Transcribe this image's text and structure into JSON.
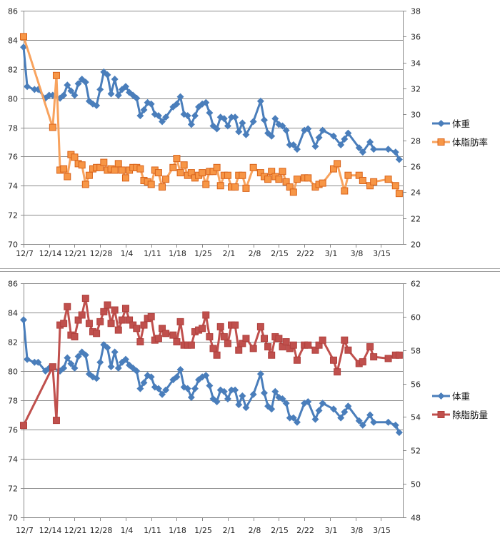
{
  "chart_data": [
    {
      "type": "line",
      "title": "",
      "xlabel": "",
      "ylabel": "",
      "y2label": "",
      "x_unit": "days since 12/7",
      "xlim": [
        0,
        104
      ],
      "xticks": [
        0,
        7,
        14,
        21,
        28,
        35,
        42,
        49,
        56,
        63,
        70,
        77,
        84,
        91,
        98
      ],
      "xtick_labels": [
        "12/7",
        "12/14",
        "12/21",
        "12/28",
        "1/4",
        "1/11",
        "1/18",
        "1/25",
        "2/1",
        "2/8",
        "2/15",
        "2/22",
        "3/1",
        "3/8",
        "3/15"
      ],
      "ylim": [
        70,
        86
      ],
      "yticks": [
        70,
        72,
        74,
        76,
        78,
        80,
        82,
        84,
        86
      ],
      "y2lim": [
        20,
        38
      ],
      "y2ticks": [
        20,
        22,
        24,
        26,
        28,
        30,
        32,
        34,
        36,
        38
      ],
      "grid": true,
      "legend_position": "right",
      "series": [
        {
          "name": "体重",
          "axis": "left",
          "color": "#4A7EBB",
          "marker": "diamond",
          "x": [
            0,
            1,
            3,
            4,
            6,
            7,
            8,
            10,
            11,
            12,
            13,
            14,
            15,
            16,
            17,
            18,
            19,
            20,
            21,
            22,
            23,
            24,
            25,
            26,
            27,
            28,
            29,
            30,
            31,
            32,
            33,
            34,
            35,
            36,
            37,
            38,
            39,
            41,
            42,
            43,
            44,
            45,
            46,
            47,
            48,
            49,
            50,
            51,
            52,
            53,
            54,
            55,
            56,
            57,
            58,
            59,
            60,
            61,
            63,
            65,
            66,
            67,
            68,
            69,
            70,
            71,
            72,
            73,
            74,
            75,
            77,
            78,
            80,
            81,
            82,
            85,
            87,
            88,
            89,
            92,
            93,
            95,
            96,
            100,
            102,
            103
          ],
          "y": [
            83.5,
            80.8,
            80.6,
            80.6,
            80.0,
            80.2,
            80.2,
            80.0,
            80.2,
            80.9,
            80.5,
            80.2,
            81.0,
            81.3,
            81.1,
            79.8,
            79.6,
            79.5,
            80.6,
            81.8,
            81.6,
            80.3,
            81.3,
            80.2,
            80.6,
            80.8,
            80.4,
            80.2,
            80.0,
            78.8,
            79.2,
            79.7,
            79.6,
            78.9,
            78.8,
            78.4,
            78.7,
            79.4,
            79.6,
            80.1,
            78.9,
            78.8,
            78.2,
            78.8,
            79.4,
            79.6,
            79.7,
            79.0,
            78.1,
            77.9,
            78.7,
            78.6,
            78.1,
            78.7,
            78.7,
            77.7,
            78.3,
            77.5,
            78.4,
            79.8,
            78.5,
            77.6,
            77.4,
            78.6,
            78.2,
            78.1,
            77.8,
            76.8,
            76.8,
            76.5,
            77.8,
            77.9,
            76.7,
            77.3,
            77.8,
            77.4,
            76.8,
            77.2,
            77.6,
            76.6,
            76.3,
            77.0,
            76.5,
            76.5,
            76.3,
            75.8
          ]
        },
        {
          "name": "体脂肪率",
          "axis": "right",
          "color": "#F79646",
          "marker": "square",
          "x": [
            0,
            8,
            9,
            10,
            11,
            12,
            13,
            14,
            15,
            16,
            17,
            18,
            19,
            20,
            21,
            22,
            23,
            24,
            25,
            26,
            27,
            28,
            29,
            30,
            31,
            32,
            33,
            34,
            35,
            36,
            37,
            38,
            39,
            41,
            42,
            43,
            44,
            45,
            46,
            47,
            48,
            49,
            50,
            51,
            52,
            53,
            54,
            55,
            56,
            57,
            58,
            59,
            60,
            61,
            63,
            65,
            66,
            67,
            68,
            69,
            70,
            71,
            72,
            73,
            74,
            75,
            77,
            78,
            80,
            81,
            82,
            85,
            86,
            88,
            89,
            92,
            93,
            95,
            96,
            100,
            102,
            103
          ],
          "y": [
            36.0,
            29.0,
            33.0,
            25.7,
            25.8,
            25.2,
            26.9,
            26.7,
            26.2,
            26.1,
            24.6,
            25.3,
            25.8,
            25.9,
            25.9,
            26.3,
            25.7,
            25.8,
            25.7,
            26.2,
            25.7,
            25.1,
            25.7,
            25.9,
            25.9,
            25.8,
            24.9,
            24.8,
            24.6,
            25.7,
            25.5,
            24.4,
            25.0,
            25.9,
            26.6,
            25.5,
            26.1,
            25.3,
            25.5,
            25.1,
            25.3,
            25.5,
            24.6,
            25.6,
            25.6,
            25.9,
            24.5,
            25.3,
            25.3,
            24.4,
            24.4,
            25.3,
            25.3,
            24.3,
            25.9,
            25.5,
            25.2,
            25.0,
            25.6,
            25.2,
            25.0,
            25.6,
            24.8,
            24.4,
            24.0,
            25.0,
            25.1,
            25.1,
            24.4,
            24.6,
            24.7,
            25.8,
            26.2,
            24.1,
            25.3,
            25.3,
            24.9,
            24.5,
            24.8,
            25.0,
            24.5,
            23.9
          ]
        }
      ]
    },
    {
      "type": "line",
      "title": "",
      "xlabel": "",
      "ylabel": "",
      "y2label": "",
      "x_unit": "days since 12/7",
      "xlim": [
        0,
        104
      ],
      "xticks": [
        0,
        7,
        14,
        21,
        28,
        35,
        42,
        49,
        56,
        63,
        70,
        77,
        84,
        91,
        98
      ],
      "xtick_labels": [
        "12/7",
        "12/14",
        "12/21",
        "12/28",
        "1/4",
        "1/11",
        "1/18",
        "1/25",
        "2/1",
        "2/8",
        "2/15",
        "2/22",
        "3/1",
        "3/8",
        "3/15"
      ],
      "ylim": [
        70,
        86
      ],
      "yticks": [
        70,
        72,
        74,
        76,
        78,
        80,
        82,
        84,
        86
      ],
      "y2lim": [
        48,
        62
      ],
      "y2ticks": [
        48,
        50,
        52,
        54,
        56,
        58,
        60,
        62
      ],
      "grid": true,
      "legend_position": "right",
      "series": [
        {
          "name": "体重",
          "axis": "left",
          "color": "#4A7EBB",
          "marker": "diamond",
          "x": [
            0,
            1,
            3,
            4,
            6,
            7,
            8,
            10,
            11,
            12,
            13,
            14,
            15,
            16,
            17,
            18,
            19,
            20,
            21,
            22,
            23,
            24,
            25,
            26,
            27,
            28,
            29,
            30,
            31,
            32,
            33,
            34,
            35,
            36,
            37,
            38,
            39,
            41,
            42,
            43,
            44,
            45,
            46,
            47,
            48,
            49,
            50,
            51,
            52,
            53,
            54,
            55,
            56,
            57,
            58,
            59,
            60,
            61,
            63,
            65,
            66,
            67,
            68,
            69,
            70,
            71,
            72,
            73,
            74,
            75,
            77,
            78,
            80,
            81,
            82,
            85,
            87,
            88,
            89,
            92,
            93,
            95,
            96,
            100,
            102,
            103
          ],
          "y": [
            83.5,
            80.8,
            80.6,
            80.6,
            80.0,
            80.2,
            80.2,
            80.0,
            80.2,
            80.9,
            80.5,
            80.2,
            81.0,
            81.3,
            81.1,
            79.8,
            79.6,
            79.5,
            80.6,
            81.8,
            81.6,
            80.3,
            81.3,
            80.2,
            80.6,
            80.8,
            80.4,
            80.2,
            80.0,
            78.8,
            79.2,
            79.7,
            79.6,
            78.9,
            78.8,
            78.4,
            78.7,
            79.4,
            79.6,
            80.1,
            78.9,
            78.8,
            78.2,
            78.8,
            79.4,
            79.6,
            79.7,
            79.0,
            78.1,
            77.9,
            78.7,
            78.6,
            78.1,
            78.7,
            78.7,
            77.7,
            78.3,
            77.5,
            78.4,
            79.8,
            78.5,
            77.6,
            77.4,
            78.6,
            78.2,
            78.1,
            77.8,
            76.8,
            76.8,
            76.5,
            77.8,
            77.9,
            76.7,
            77.3,
            77.8,
            77.4,
            76.8,
            77.2,
            77.6,
            76.6,
            76.3,
            77.0,
            76.5,
            76.5,
            76.3,
            75.8
          ]
        },
        {
          "name": "除脂肪量",
          "axis": "right",
          "color": "#C0504D",
          "marker": "square",
          "x": [
            0,
            8,
            9,
            10,
            11,
            12,
            13,
            14,
            15,
            16,
            17,
            18,
            19,
            20,
            21,
            22,
            23,
            24,
            25,
            26,
            27,
            28,
            29,
            30,
            31,
            32,
            33,
            34,
            35,
            36,
            37,
            38,
            39,
            41,
            42,
            43,
            44,
            45,
            46,
            47,
            48,
            49,
            50,
            51,
            52,
            53,
            54,
            55,
            56,
            57,
            58,
            59,
            60,
            61,
            63,
            65,
            66,
            67,
            68,
            69,
            70,
            71,
            72,
            73,
            74,
            75,
            77,
            78,
            80,
            81,
            82,
            85,
            86,
            88,
            89,
            92,
            93,
            95,
            96,
            100,
            102,
            103
          ],
          "y": [
            53.5,
            57.0,
            53.8,
            59.5,
            59.6,
            60.6,
            58.9,
            58.8,
            59.8,
            60.1,
            61.1,
            59.6,
            59.1,
            59.0,
            59.7,
            60.3,
            60.7,
            59.6,
            60.4,
            59.2,
            59.8,
            60.5,
            59.8,
            59.5,
            59.3,
            58.5,
            59.5,
            59.9,
            60.0,
            58.6,
            58.7,
            59.3,
            59.0,
            58.9,
            58.5,
            59.7,
            58.3,
            58.3,
            58.3,
            59.1,
            59.2,
            59.3,
            60.1,
            58.8,
            58.1,
            57.7,
            59.4,
            58.8,
            58.4,
            59.5,
            59.5,
            58.0,
            58.4,
            58.7,
            58.1,
            59.4,
            58.7,
            58.2,
            57.7,
            58.8,
            58.7,
            58.2,
            58.5,
            58.1,
            58.3,
            57.4,
            58.3,
            58.3,
            58.0,
            58.3,
            58.6,
            57.4,
            56.7,
            58.6,
            58.0,
            57.2,
            57.3,
            58.2,
            57.6,
            57.5,
            57.7,
            57.7
          ]
        }
      ]
    }
  ]
}
